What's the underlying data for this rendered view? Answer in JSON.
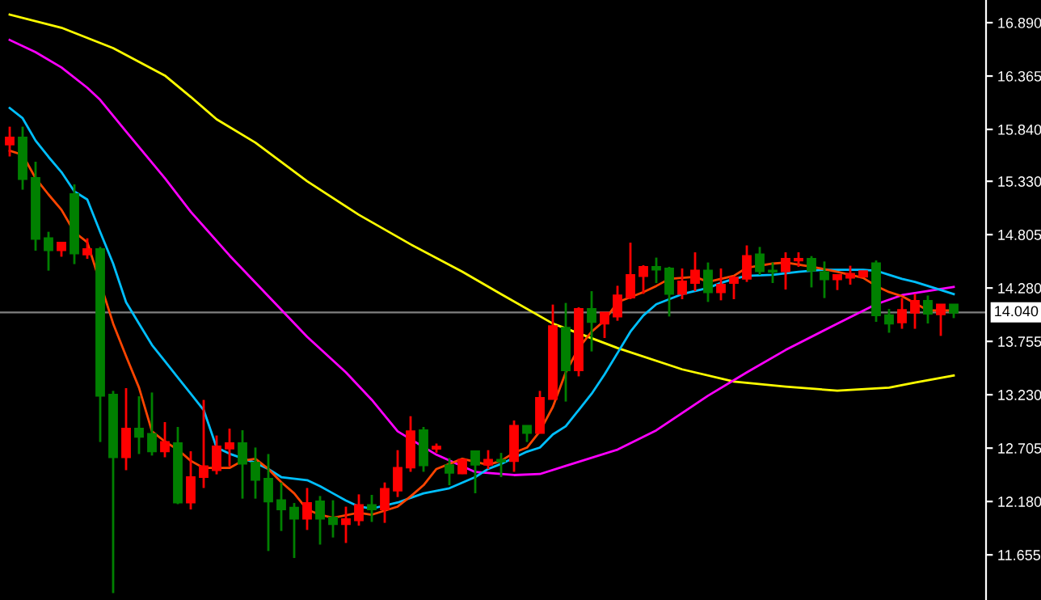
{
  "chart_data": {
    "type": "candlestick",
    "categories": [
      null,
      null,
      null,
      null,
      null,
      null,
      null,
      null,
      null,
      null,
      null,
      null,
      null,
      null,
      null,
      null,
      null,
      null,
      null,
      null,
      null,
      null,
      null,
      null,
      null,
      null,
      null,
      null,
      null,
      null,
      null,
      null,
      null,
      null,
      null,
      null,
      null,
      null,
      null,
      null,
      null,
      null,
      null,
      null,
      null,
      null,
      null,
      null,
      null,
      null,
      null,
      null,
      null,
      null,
      null,
      null,
      null,
      null,
      null,
      null,
      null,
      null,
      null,
      null,
      null,
      null,
      null,
      null,
      null,
      null,
      null,
      null,
      null,
      null
    ],
    "ohlc": [
      [
        15.692,
        15.867,
        15.574,
        15.76
      ],
      [
        15.76,
        15.867,
        15.247,
        15.352
      ],
      [
        15.363,
        15.522,
        14.647,
        14.763
      ],
      [
        14.77,
        14.833,
        14.451,
        14.652
      ],
      [
        14.652,
        14.726,
        14.588,
        14.726
      ],
      [
        15.204,
        15.299,
        14.515,
        14.62
      ],
      [
        14.61,
        14.769,
        14.567,
        14.663
      ],
      [
        14.663,
        14.684,
        12.765,
        13.22
      ],
      [
        13.231,
        13.268,
        11.279,
        12.615
      ],
      [
        12.615,
        13.295,
        12.488,
        12.897
      ],
      [
        12.897,
        13.215,
        12.647,
        12.817
      ],
      [
        12.844,
        13.252,
        12.632,
        12.674
      ],
      [
        12.674,
        12.961,
        12.615,
        12.765
      ],
      [
        12.754,
        12.913,
        12.154,
        12.17
      ],
      [
        12.17,
        12.674,
        12.102,
        12.42
      ],
      [
        12.42,
        13.179,
        12.313,
        12.526
      ],
      [
        12.488,
        12.829,
        12.447,
        12.722
      ],
      [
        12.701,
        12.897,
        12.526,
        12.754
      ],
      [
        12.754,
        12.881,
        12.208,
        12.552
      ],
      [
        12.563,
        12.711,
        12.208,
        12.393
      ],
      [
        12.404,
        12.647,
        11.693,
        12.181
      ],
      [
        12.192,
        12.367,
        11.89,
        12.102
      ],
      [
        12.118,
        12.165,
        11.624,
        12.011
      ],
      [
        12.011,
        12.313,
        11.9,
        12.165
      ],
      [
        12.181,
        12.234,
        11.756,
        12.011
      ],
      [
        12.022,
        12.192,
        11.826,
        11.958
      ],
      [
        11.958,
        12.129,
        11.772,
        12.006
      ],
      [
        11.995,
        12.25,
        11.943,
        12.145
      ],
      [
        12.145,
        12.245,
        11.979,
        12.102
      ],
      [
        12.102,
        12.367,
        11.97,
        12.304
      ],
      [
        12.288,
        12.685,
        12.224,
        12.51
      ],
      [
        12.515,
        13.019,
        12.472,
        12.87
      ],
      [
        12.881,
        12.913,
        12.472,
        12.536
      ],
      [
        12.7,
        12.75,
        12.66,
        12.72
      ],
      [
        12.536,
        12.606,
        12.34,
        12.463
      ],
      [
        12.457,
        12.6,
        12.45,
        12.59
      ],
      [
        12.674,
        12.68,
        12.261,
        12.542
      ],
      [
        12.542,
        12.685,
        12.499,
        12.59
      ],
      [
        12.59,
        12.658,
        12.42,
        12.574
      ],
      [
        12.579,
        12.977,
        12.472,
        12.924
      ],
      [
        12.924,
        12.924,
        12.765,
        12.854
      ],
      [
        12.854,
        13.268,
        12.85,
        13.199
      ],
      [
        13.188,
        14.117,
        13.188,
        13.904
      ],
      [
        13.888,
        14.133,
        13.163,
        13.47
      ],
      [
        13.47,
        14.09,
        13.411,
        14.074
      ],
      [
        14.074,
        14.249,
        13.656,
        13.947
      ],
      [
        13.931,
        14.04,
        13.788,
        14.038
      ],
      [
        14.0,
        14.302,
        13.958,
        14.206
      ],
      [
        14.186,
        14.726,
        14.17,
        14.408
      ],
      [
        14.397,
        14.504,
        14.222,
        14.488
      ],
      [
        14.488,
        14.579,
        14.329,
        14.461
      ],
      [
        14.472,
        14.488,
        14.0,
        14.222
      ],
      [
        14.222,
        14.472,
        14.17,
        14.345
      ],
      [
        14.329,
        14.631,
        14.249,
        14.451
      ],
      [
        14.451,
        14.531,
        14.143,
        14.238
      ],
      [
        14.238,
        14.472,
        14.159,
        14.313
      ],
      [
        14.329,
        14.397,
        14.17,
        14.381
      ],
      [
        14.372,
        14.699,
        14.34,
        14.594
      ],
      [
        14.61,
        14.684,
        14.408,
        14.445
      ],
      [
        14.451,
        14.531,
        14.329,
        14.44
      ],
      [
        14.445,
        14.631,
        14.265,
        14.567
      ],
      [
        14.551,
        14.631,
        14.488,
        14.567
      ],
      [
        14.567,
        14.594,
        14.286,
        14.451
      ],
      [
        14.435,
        14.541,
        14.181,
        14.365
      ],
      [
        14.365,
        14.408,
        14.26,
        14.408
      ],
      [
        14.381,
        14.499,
        14.313,
        14.419
      ],
      [
        14.392,
        14.445,
        14.39,
        14.445
      ],
      [
        14.524,
        14.551,
        13.947,
        14.011
      ],
      [
        14.011,
        14.074,
        13.84,
        13.931
      ],
      [
        13.942,
        14.181,
        13.879,
        14.063
      ],
      [
        14.038,
        14.222,
        13.879,
        14.154
      ],
      [
        14.154,
        14.206,
        13.931,
        14.027
      ],
      [
        14.022,
        14.117,
        13.809,
        14.117
      ],
      [
        14.117,
        14.117,
        13.984,
        14.038
      ]
    ],
    "colors": [
      "#ff0000",
      "#008000",
      "#008000",
      "#008000",
      "#ff0000",
      "#008000",
      "#ff0000",
      "#008000",
      "#008000",
      "#ff0000",
      "#008000",
      "#008000",
      "#ff0000",
      "#008000",
      "#ff0000",
      "#ff0000",
      "#ff0000",
      "#ff0000",
      "#008000",
      "#008000",
      "#008000",
      "#008000",
      "#008000",
      "#ff0000",
      "#008000",
      "#008000",
      "#ff0000",
      "#ff0000",
      "#008000",
      "#ff0000",
      "#ff0000",
      "#ff0000",
      "#008000",
      "#ff0000",
      "#008000",
      "#ff0000",
      "#008000",
      "#ff0000",
      "#008000",
      "#ff0000",
      "#008000",
      "#ff0000",
      "#ff0000",
      "#008000",
      "#ff0000",
      "#008000",
      "#ff0000",
      "#ff0000",
      "#ff0000",
      "#ff0000",
      "#008000",
      "#008000",
      "#ff0000",
      "#ff0000",
      "#008000",
      "#ff0000",
      "#ff0000",
      "#ff0000",
      "#008000",
      "#008000",
      "#ff0000",
      "#ff0000",
      "#008000",
      "#008000",
      "#ff0000",
      "#ff0000",
      "#ff0000",
      "#008000",
      "#008000",
      "#ff0000",
      "#ff0000",
      "#008000",
      "#ff0000",
      "#008000"
    ],
    "series": [
      {
        "type": "line",
        "color": "#ffff00",
        "values": [
          16.97,
          null,
          null,
          null,
          16.84,
          null,
          null,
          null,
          16.64,
          null,
          null,
          null,
          16.37,
          null,
          16.16,
          null,
          15.94,
          null,
          null,
          15.71,
          null,
          null,
          null,
          15.33,
          null,
          null,
          null,
          15.0,
          null,
          null,
          null,
          14.71,
          null,
          null,
          null,
          14.44,
          null,
          null,
          14.22,
          null,
          null,
          null,
          13.93,
          null,
          null,
          null,
          null,
          13.69,
          null,
          null,
          null,
          null,
          13.48,
          null,
          null,
          null,
          13.36,
          null,
          null,
          null,
          13.31,
          null,
          null,
          null,
          13.27,
          null,
          null,
          null,
          13.3,
          null,
          13.35,
          null,
          null,
          13.42
        ]
      },
      {
        "type": "line",
        "color": "#ff00ff",
        "values": [
          16.72,
          null,
          16.6,
          null,
          16.45,
          null,
          16.25,
          16.13,
          null,
          15.82,
          null,
          null,
          15.36,
          null,
          15.03,
          null,
          null,
          14.6,
          null,
          null,
          14.2,
          null,
          null,
          13.8,
          null,
          null,
          13.45,
          null,
          13.18,
          null,
          12.87,
          null,
          null,
          12.64,
          null,
          null,
          12.47,
          null,
          null,
          12.44,
          null,
          12.45,
          null,
          12.53,
          null,
          null,
          null,
          12.69,
          null,
          null,
          12.88,
          null,
          null,
          null,
          13.22,
          null,
          null,
          13.45,
          null,
          null,
          13.67,
          null,
          null,
          null,
          13.93,
          null,
          null,
          14.12,
          null,
          14.21,
          null,
          14.25,
          null,
          14.29
        ]
      },
      {
        "type": "line",
        "color": "#00bfff",
        "values": [
          16.05,
          15.95,
          15.73,
          15.57,
          15.42,
          15.23,
          15.15,
          14.83,
          14.52,
          14.14,
          13.93,
          13.72,
          13.56,
          13.4,
          13.24,
          13.08,
          12.71,
          12.65,
          null,
          12.56,
          12.5,
          12.42,
          null,
          12.39,
          12.33,
          12.26,
          12.19,
          12.13,
          12.11,
          null,
          12.17,
          null,
          12.26,
          null,
          12.31,
          null,
          12.42,
          12.5,
          12.55,
          null,
          12.67,
          12.71,
          12.84,
          12.92,
          13.08,
          13.24,
          13.43,
          13.64,
          13.85,
          14.01,
          14.12,
          14.17,
          14.22,
          null,
          14.28,
          14.33,
          14.37,
          14.4,
          null,
          14.41,
          null,
          14.44,
          null,
          14.46,
          null,
          null,
          14.46,
          14.45,
          14.41,
          14.37,
          14.34,
          14.3,
          14.26,
          14.22
        ]
      },
      {
        "type": "line",
        "color": "#ff4500",
        "values": [
          15.63,
          15.59,
          15.36,
          15.2,
          15.05,
          14.83,
          14.73,
          null,
          13.93,
          13.61,
          13.3,
          12.87,
          12.77,
          12.69,
          12.58,
          12.51,
          null,
          12.51,
          12.58,
          12.6,
          12.5,
          12.37,
          12.26,
          12.1,
          12.05,
          12.02,
          null,
          12.07,
          12.05,
          null,
          12.13,
          12.23,
          12.34,
          12.5,
          null,
          12.6,
          null,
          12.54,
          12.58,
          12.66,
          12.71,
          12.87,
          13.11,
          13.45,
          13.69,
          13.85,
          13.96,
          14.14,
          null,
          14.24,
          14.3,
          14.37,
          null,
          14.39,
          14.34,
          null,
          14.4,
          14.48,
          null,
          14.52,
          14.53,
          null,
          14.49,
          null,
          14.44,
          null,
          14.38,
          14.3,
          14.24,
          14.2,
          14.13,
          14.06,
          null,
          14.06
        ]
      }
    ],
    "ylim": [
      11.211,
      17.113
    ],
    "yticks": [
      {
        "value": 16.89,
        "label": "16.890"
      },
      {
        "value": 16.365,
        "label": "16.365"
      },
      {
        "value": 15.84,
        "label": "15.840"
      },
      {
        "value": 15.33,
        "label": "15.330"
      },
      {
        "value": 14.805,
        "label": "14.805"
      },
      {
        "value": 14.28,
        "label": "14.280"
      },
      {
        "value": 13.755,
        "label": "13.755"
      },
      {
        "value": 13.23,
        "label": "13.230"
      },
      {
        "value": 12.705,
        "label": "12.705"
      },
      {
        "value": 12.18,
        "label": "12.180"
      },
      {
        "value": 11.655,
        "label": "11.655"
      }
    ],
    "ref_lines": [
      {
        "axis": "y",
        "value": 14.04,
        "label": "14.040",
        "color": "#808080"
      }
    ],
    "tick_labels": "y"
  }
}
